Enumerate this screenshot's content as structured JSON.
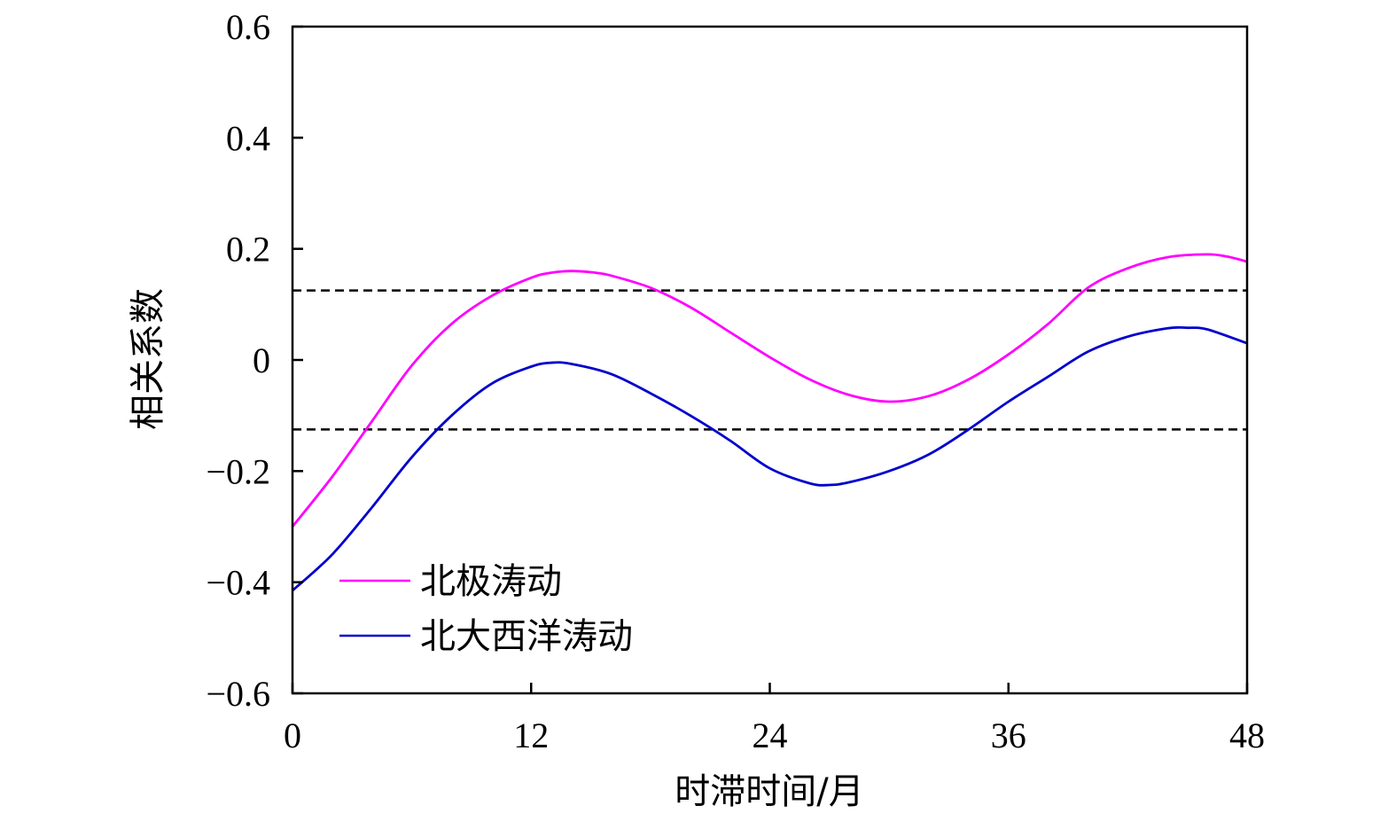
{
  "chart_data": {
    "type": "line",
    "title": "",
    "xlabel": "时滞时间/月",
    "ylabel": "相关系数",
    "xlim": [
      0,
      48
    ],
    "ylim": [
      -0.6,
      0.6
    ],
    "x_ticks": [
      "0",
      "12",
      "24",
      "36",
      "48"
    ],
    "y_ticks": [
      "0.6",
      "0.4",
      "0.2",
      "0",
      "−0.2",
      "−0.4",
      "−0.6"
    ],
    "legend_placement": "bottom-left",
    "grid": false,
    "reference_lines": [
      {
        "y": 0.125,
        "style": "dashed",
        "color": "#000000"
      },
      {
        "y": -0.125,
        "style": "dashed",
        "color": "#000000"
      }
    ],
    "series": [
      {
        "name": "北极涛动",
        "color": "#ff00ff",
        "x": [
          0,
          2,
          4,
          6,
          8,
          10,
          12,
          13,
          14,
          15,
          16,
          18,
          20,
          22,
          24,
          26,
          28,
          30,
          32,
          34,
          36,
          38,
          40,
          42,
          44,
          46,
          47,
          48
        ],
        "y": [
          -0.3,
          -0.21,
          -0.11,
          -0.01,
          0.065,
          0.115,
          0.148,
          0.157,
          0.16,
          0.158,
          0.152,
          0.13,
          0.095,
          0.05,
          0.005,
          -0.035,
          -0.063,
          -0.075,
          -0.065,
          -0.035,
          0.01,
          0.065,
          0.13,
          0.165,
          0.185,
          0.19,
          0.186,
          0.177
        ]
      },
      {
        "name": "北大西洋涛动",
        "color": "#0000cc",
        "x": [
          0,
          2,
          4,
          6,
          8,
          10,
          12,
          13,
          14,
          16,
          18,
          20,
          22,
          24,
          26,
          27,
          28,
          30,
          32,
          34,
          36,
          38,
          40,
          42,
          44,
          45,
          46,
          48
        ],
        "y": [
          -0.415,
          -0.35,
          -0.265,
          -0.175,
          -0.1,
          -0.043,
          -0.012,
          -0.005,
          -0.007,
          -0.025,
          -0.06,
          -0.1,
          -0.145,
          -0.195,
          -0.222,
          -0.225,
          -0.22,
          -0.2,
          -0.17,
          -0.125,
          -0.075,
          -0.03,
          0.015,
          0.042,
          0.057,
          0.058,
          0.055,
          0.03
        ]
      }
    ]
  }
}
